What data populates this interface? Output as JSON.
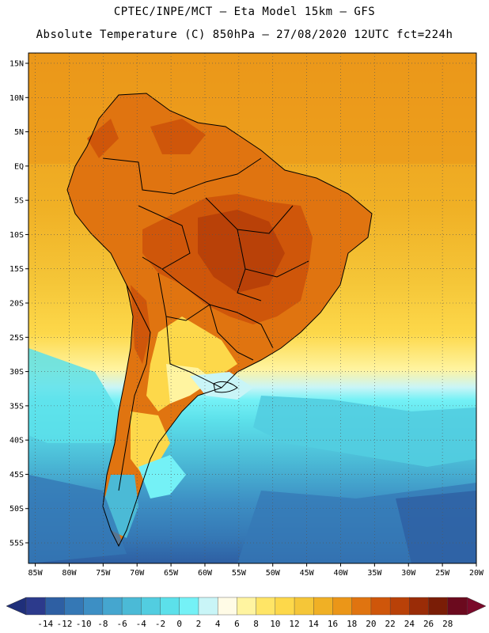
{
  "header": {
    "line1": "CPTEC/INPE/MCT –  Eta Model 15km – GFS",
    "line2": "Absolute Temperature (C) 850hPa – 27/08/2020 12UTC fct=224h"
  },
  "map": {
    "lat_labels": [
      "15N",
      "10N",
      "5N",
      "EQ",
      "5S",
      "10S",
      "15S",
      "20S",
      "25S",
      "30S",
      "35S",
      "40S",
      "45S",
      "50S",
      "55S"
    ],
    "lon_labels": [
      "85W",
      "80W",
      "75W",
      "70W",
      "65W",
      "60W",
      "55W",
      "50W",
      "45W",
      "40W",
      "35W",
      "30W",
      "25W",
      "20W"
    ],
    "lat_range": [
      16.5,
      -58
    ],
    "lon_range": [
      -86,
      -20
    ],
    "grid": "dotted"
  },
  "colorbar": {
    "levels": [
      "-14",
      "-12",
      "-10",
      "-8",
      "-6",
      "-4",
      "-2",
      "0",
      "2",
      "4",
      "6",
      "8",
      "10",
      "12",
      "14",
      "16",
      "18",
      "20",
      "22",
      "24",
      "26",
      "28"
    ],
    "colors": [
      "#2c3a8c",
      "#2e5fa3",
      "#3578b5",
      "#3d8fc4",
      "#45a6cf",
      "#4bbad6",
      "#52cde0",
      "#5ce0ea",
      "#74f1f6",
      "#c9f5f7",
      "#fffbe6",
      "#fff4a0",
      "#ffe566",
      "#fdd84a",
      "#f5c638",
      "#f0b025",
      "#eb9618",
      "#e07410",
      "#cf560a",
      "#b94108",
      "#9a2c07",
      "#7a1d06",
      "#6b0a1e"
    ],
    "low_color": "#1f2f7a",
    "high_color": "#7a0a2a"
  }
}
